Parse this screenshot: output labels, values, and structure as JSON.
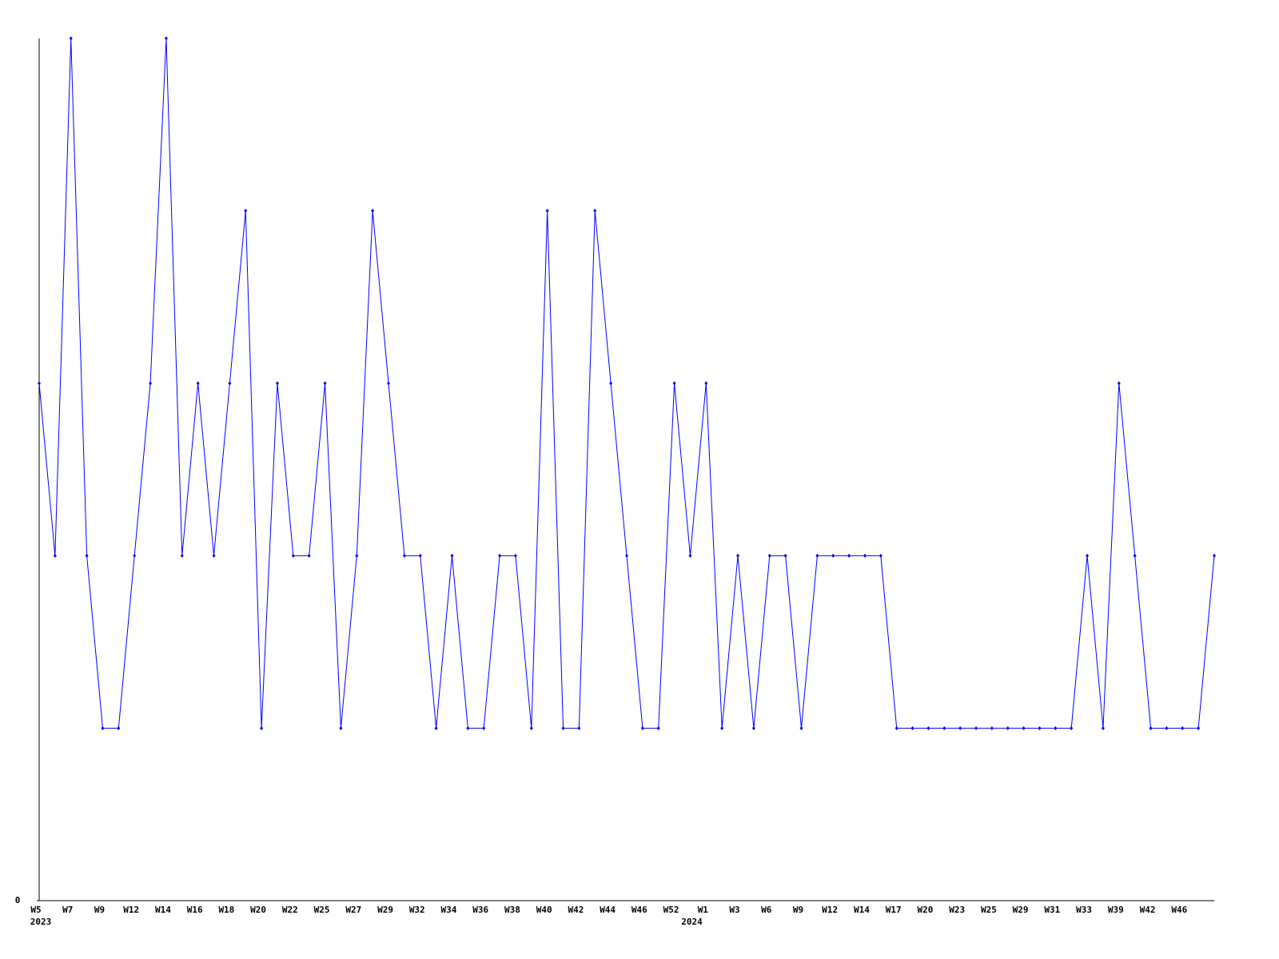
{
  "chart_data": {
    "type": "line",
    "categories": [
      "W5",
      null,
      "W7",
      null,
      "W9",
      null,
      "W12",
      null,
      "W14",
      null,
      "W16",
      null,
      "W18",
      null,
      "W20",
      null,
      "W22",
      null,
      "W25",
      null,
      "W27",
      null,
      "W29",
      null,
      "W32",
      null,
      "W34",
      null,
      "W36",
      null,
      "W38",
      null,
      "W40",
      null,
      "W42",
      null,
      "W44",
      null,
      "W46",
      null,
      "W52",
      null,
      "W1",
      null,
      "W3",
      null,
      "W6",
      null,
      "W9",
      null,
      "W12",
      null,
      "W14",
      null,
      "W17",
      null,
      "W20",
      null,
      "W23",
      null,
      "W25",
      null,
      "W29",
      null,
      "W31",
      null,
      "W33",
      null,
      "W39",
      null,
      "W42",
      null,
      "W46",
      null,
      null
    ],
    "year_categories": [
      "2023",
      null,
      null,
      null,
      null,
      null,
      null,
      null,
      null,
      null,
      null,
      null,
      null,
      null,
      null,
      null,
      null,
      null,
      null,
      null,
      null,
      null,
      null,
      null,
      null,
      null,
      null,
      null,
      null,
      null,
      null,
      null,
      null,
      null,
      null,
      null,
      null,
      null,
      null,
      null,
      null,
      "2024",
      null,
      null,
      null,
      null,
      null,
      null,
      null,
      null,
      null,
      null,
      null,
      null,
      null,
      null,
      null,
      null,
      null,
      null,
      null,
      null,
      null,
      null,
      null,
      null,
      null,
      null,
      null,
      null,
      null,
      null,
      null,
      null,
      null
    ],
    "series": [
      {
        "color": "#0000ff",
        "values": [
          3,
          2,
          5,
          2,
          1,
          1,
          2,
          3,
          5,
          2,
          3,
          2,
          3,
          4,
          1,
          3,
          2,
          2,
          3,
          1,
          2,
          4,
          3,
          2,
          2,
          1,
          2,
          1,
          1,
          2,
          2,
          1,
          4,
          1,
          1,
          4,
          3,
          2,
          1,
          1,
          3,
          2,
          3,
          1,
          2,
          1,
          2,
          2,
          1,
          2,
          2,
          2,
          2,
          2,
          1,
          1,
          1,
          1,
          1,
          1,
          1,
          1,
          1,
          1,
          1,
          1,
          2,
          1,
          3,
          2,
          1,
          1,
          1,
          1,
          2
        ]
      }
    ],
    "ylim": [
      0,
      5
    ],
    "yticks": [
      0
    ]
  }
}
